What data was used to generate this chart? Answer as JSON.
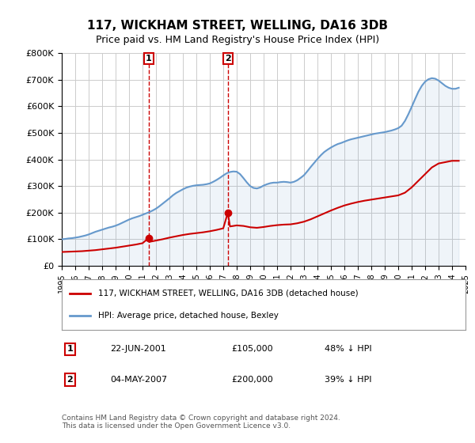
{
  "title": "117, WICKHAM STREET, WELLING, DA16 3DB",
  "subtitle": "Price paid vs. HM Land Registry's House Price Index (HPI)",
  "legend_red": "117, WICKHAM STREET, WELLING, DA16 3DB (detached house)",
  "legend_blue": "HPI: Average price, detached house, Bexley",
  "transaction1_label": "1",
  "transaction1_date": "22-JUN-2001",
  "transaction1_price": "£105,000",
  "transaction1_hpi": "48% ↓ HPI",
  "transaction1_year": 2001.47,
  "transaction1_value": 105000,
  "transaction2_label": "2",
  "transaction2_date": "04-MAY-2007",
  "transaction2_price": "£200,000",
  "transaction2_hpi": "39% ↓ HPI",
  "transaction2_year": 2007.34,
  "transaction2_value": 200000,
  "footer": "Contains HM Land Registry data © Crown copyright and database right 2024.\nThis data is licensed under the Open Government Licence v3.0.",
  "red_color": "#cc0000",
  "blue_color": "#6699cc",
  "background_color": "#ffffff",
  "plot_bg_color": "#ffffff",
  "grid_color": "#cccccc",
  "xlim": [
    1995,
    2025
  ],
  "ylim": [
    0,
    800000
  ],
  "yticks": [
    0,
    100000,
    200000,
    300000,
    400000,
    500000,
    600000,
    700000,
    800000
  ],
  "ytick_labels": [
    "£0",
    "£100K",
    "£200K",
    "£300K",
    "£400K",
    "£500K",
    "£600K",
    "£700K",
    "£800K"
  ],
  "hpi_years": [
    1995.0,
    1995.25,
    1995.5,
    1995.75,
    1996.0,
    1996.25,
    1996.5,
    1996.75,
    1997.0,
    1997.25,
    1997.5,
    1997.75,
    1998.0,
    1998.25,
    1998.5,
    1998.75,
    1999.0,
    1999.25,
    1999.5,
    1999.75,
    2000.0,
    2000.25,
    2000.5,
    2000.75,
    2001.0,
    2001.25,
    2001.5,
    2001.75,
    2002.0,
    2002.25,
    2002.5,
    2002.75,
    2003.0,
    2003.25,
    2003.5,
    2003.75,
    2004.0,
    2004.25,
    2004.5,
    2004.75,
    2005.0,
    2005.25,
    2005.5,
    2005.75,
    2006.0,
    2006.25,
    2006.5,
    2006.75,
    2007.0,
    2007.25,
    2007.5,
    2007.75,
    2008.0,
    2008.25,
    2008.5,
    2008.75,
    2009.0,
    2009.25,
    2009.5,
    2009.75,
    2010.0,
    2010.25,
    2010.5,
    2010.75,
    2011.0,
    2011.25,
    2011.5,
    2011.75,
    2012.0,
    2012.25,
    2012.5,
    2012.75,
    2013.0,
    2013.25,
    2013.5,
    2013.75,
    2014.0,
    2014.25,
    2014.5,
    2014.75,
    2015.0,
    2015.25,
    2015.5,
    2015.75,
    2016.0,
    2016.25,
    2016.5,
    2016.75,
    2017.0,
    2017.25,
    2017.5,
    2017.75,
    2018.0,
    2018.25,
    2018.5,
    2018.75,
    2019.0,
    2019.25,
    2019.5,
    2019.75,
    2020.0,
    2020.25,
    2020.5,
    2020.75,
    2021.0,
    2021.25,
    2021.5,
    2021.75,
    2022.0,
    2022.25,
    2022.5,
    2022.75,
    2023.0,
    2023.25,
    2023.5,
    2023.75,
    2024.0,
    2024.25,
    2024.5
  ],
  "hpi_values": [
    100000,
    101000,
    103000,
    104000,
    106000,
    108000,
    111000,
    114000,
    118000,
    123000,
    128000,
    132000,
    136000,
    140000,
    144000,
    147000,
    151000,
    156000,
    162000,
    168000,
    174000,
    179000,
    183000,
    187000,
    192000,
    197000,
    202000,
    208000,
    215000,
    224000,
    234000,
    244000,
    254000,
    265000,
    274000,
    281000,
    288000,
    294000,
    298000,
    301000,
    303000,
    304000,
    305000,
    307000,
    310000,
    316000,
    323000,
    331000,
    340000,
    348000,
    353000,
    355000,
    354000,
    345000,
    330000,
    314000,
    300000,
    293000,
    291000,
    295000,
    302000,
    307000,
    311000,
    313000,
    313000,
    315000,
    316000,
    315000,
    313000,
    316000,
    322000,
    331000,
    341000,
    356000,
    372000,
    387000,
    402000,
    416000,
    428000,
    437000,
    445000,
    452000,
    458000,
    462000,
    467000,
    472000,
    476000,
    479000,
    482000,
    485000,
    488000,
    491000,
    494000,
    497000,
    499000,
    501000,
    503000,
    506000,
    509000,
    513000,
    518000,
    527000,
    545000,
    570000,
    598000,
    627000,
    655000,
    677000,
    693000,
    702000,
    706000,
    704000,
    697000,
    687000,
    677000,
    670000,
    666000,
    666000,
    670000
  ],
  "red_years": [
    1995.0,
    1995.5,
    1996.0,
    1996.5,
    1997.0,
    1997.5,
    1998.0,
    1998.5,
    1999.0,
    1999.5,
    2000.0,
    2000.5,
    2001.0,
    2001.47,
    2001.5,
    2002.0,
    2002.5,
    2003.0,
    2003.5,
    2004.0,
    2004.5,
    2005.0,
    2005.5,
    2006.0,
    2006.5,
    2007.0,
    2007.34,
    2007.5,
    2008.0,
    2008.5,
    2009.0,
    2009.5,
    2010.0,
    2010.5,
    2011.0,
    2011.5,
    2012.0,
    2012.5,
    2013.0,
    2013.5,
    2014.0,
    2014.5,
    2015.0,
    2015.5,
    2016.0,
    2016.5,
    2017.0,
    2017.5,
    2018.0,
    2018.5,
    2019.0,
    2019.5,
    2020.0,
    2020.5,
    2021.0,
    2021.5,
    2022.0,
    2022.5,
    2023.0,
    2023.5,
    2024.0,
    2024.5
  ],
  "red_values": [
    52000,
    53000,
    54000,
    55000,
    57000,
    59000,
    62000,
    65000,
    68000,
    72000,
    76000,
    80000,
    85000,
    105000,
    90000,
    95000,
    100000,
    106000,
    111000,
    116000,
    120000,
    123000,
    126000,
    130000,
    135000,
    141000,
    200000,
    148000,
    152000,
    150000,
    145000,
    143000,
    146000,
    150000,
    153000,
    155000,
    156000,
    160000,
    166000,
    175000,
    186000,
    197000,
    208000,
    218000,
    227000,
    234000,
    240000,
    245000,
    249000,
    253000,
    257000,
    261000,
    265000,
    275000,
    295000,
    320000,
    345000,
    370000,
    385000,
    390000,
    395000,
    395000
  ]
}
